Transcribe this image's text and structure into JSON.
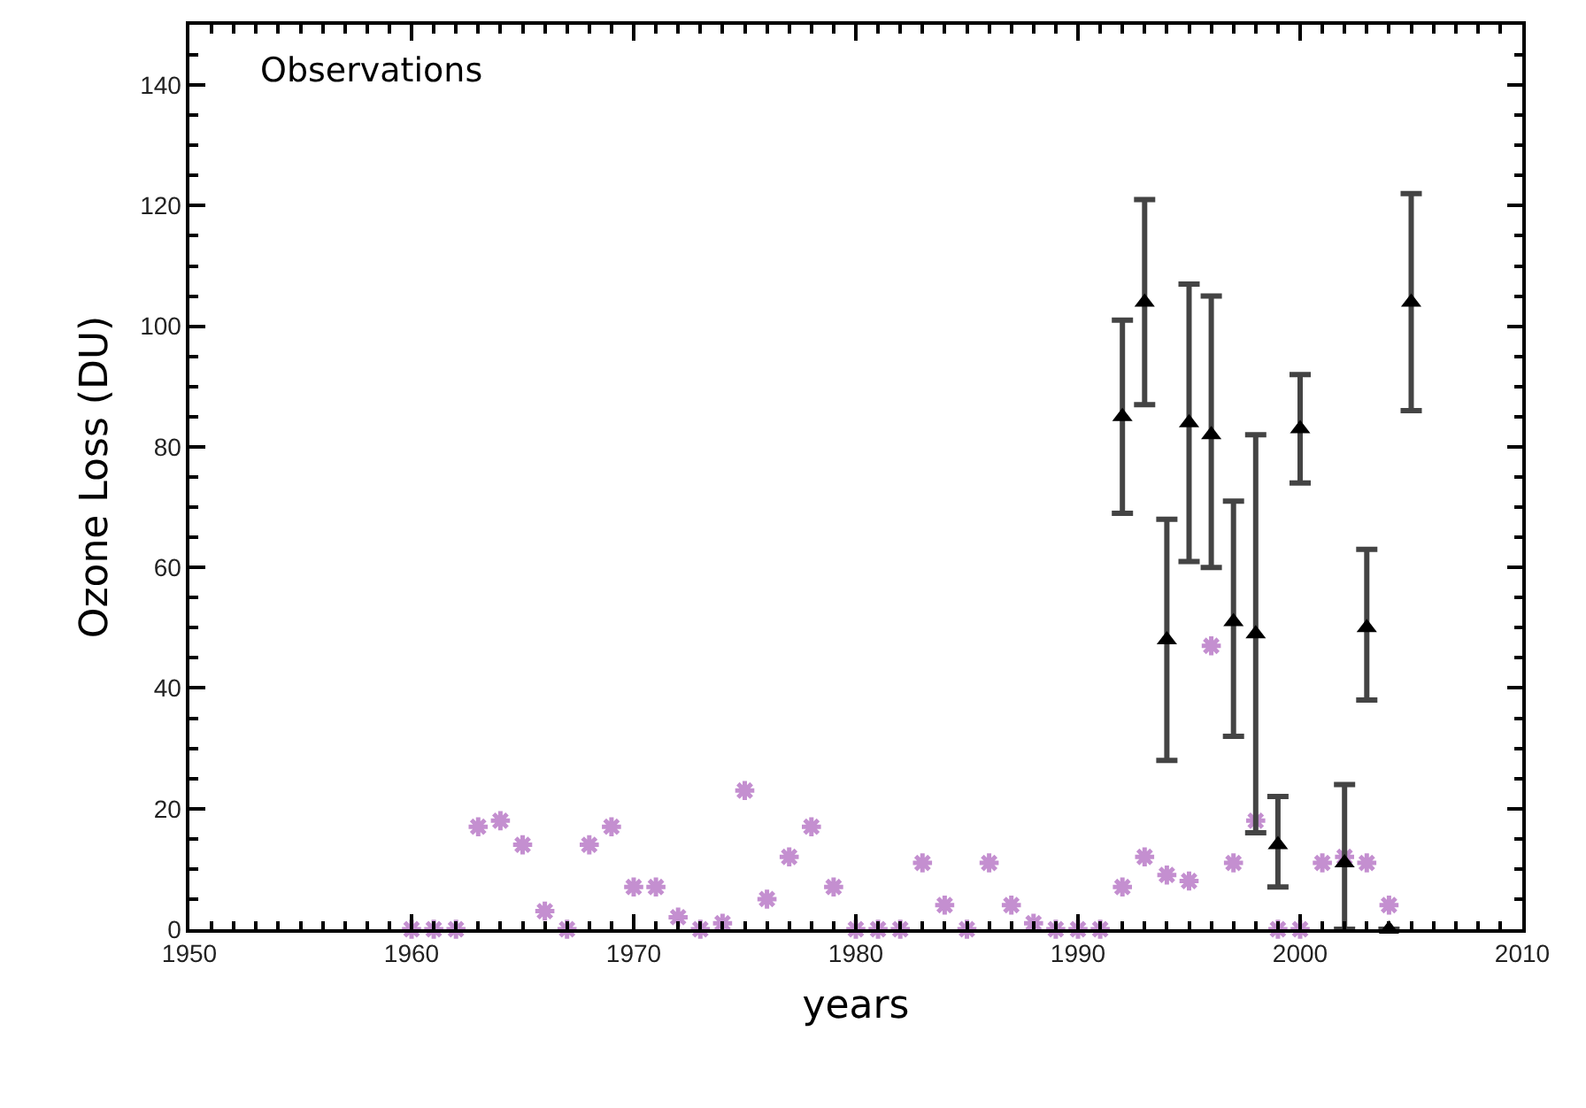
{
  "chart_data": {
    "type": "scatter",
    "xlabel": "years",
    "ylabel": "Ozone Loss (DU)",
    "annotations": [
      "Observations"
    ],
    "xlim": [
      1950,
      2010
    ],
    "xticks": [
      1950,
      1960,
      1970,
      1980,
      1990,
      2000,
      2010
    ],
    "ylim": [
      0,
      150
    ],
    "yticks": [
      0,
      20,
      40,
      60,
      80,
      100,
      120,
      140
    ],
    "grid": false,
    "series": [
      {
        "color": "#c48fd0",
        "marker": "cross",
        "x": [
          1960,
          1961,
          1962,
          1963,
          1964,
          1965,
          1966,
          1967,
          1968,
          1969,
          1970,
          1971,
          1972,
          1973,
          1974,
          1975,
          1976,
          1977,
          1978,
          1979,
          1980,
          1981,
          1982,
          1983,
          1984,
          1985,
          1986,
          1987,
          1988,
          1989,
          1990,
          1991,
          1992,
          1993,
          1994,
          1995,
          1996,
          1997,
          1998,
          1999,
          2000,
          2001,
          2002,
          2003,
          2004
        ],
        "values": [
          0,
          0,
          0,
          17,
          18,
          14,
          3,
          0,
          14,
          17,
          7,
          7,
          2,
          0,
          1,
          23,
          5,
          12,
          17,
          7,
          0,
          0,
          0,
          11,
          4,
          0,
          11,
          4,
          1,
          0,
          0,
          0,
          7,
          12,
          9,
          8,
          47,
          11,
          18,
          0,
          0,
          11,
          12,
          11,
          4
        ]
      },
      {
        "color": "#000000",
        "marker": "triangle",
        "x": [
          1992,
          1993,
          1994,
          1995,
          1996,
          1997,
          1998,
          1999,
          2000,
          2002,
          2003,
          2004,
          2005
        ],
        "values": [
          85,
          104,
          48,
          84,
          82,
          51,
          49,
          14,
          83,
          11,
          50,
          0,
          104
        ],
        "errors": [
          [
            69,
            101
          ],
          [
            87,
            121
          ],
          [
            28,
            68
          ],
          [
            61,
            107
          ],
          [
            60,
            105
          ],
          [
            32,
            71
          ],
          [
            16,
            82
          ],
          [
            7,
            22
          ],
          [
            74,
            92
          ],
          [
            0,
            24
          ],
          [
            38,
            63
          ],
          null,
          [
            86,
            122
          ]
        ]
      }
    ]
  }
}
